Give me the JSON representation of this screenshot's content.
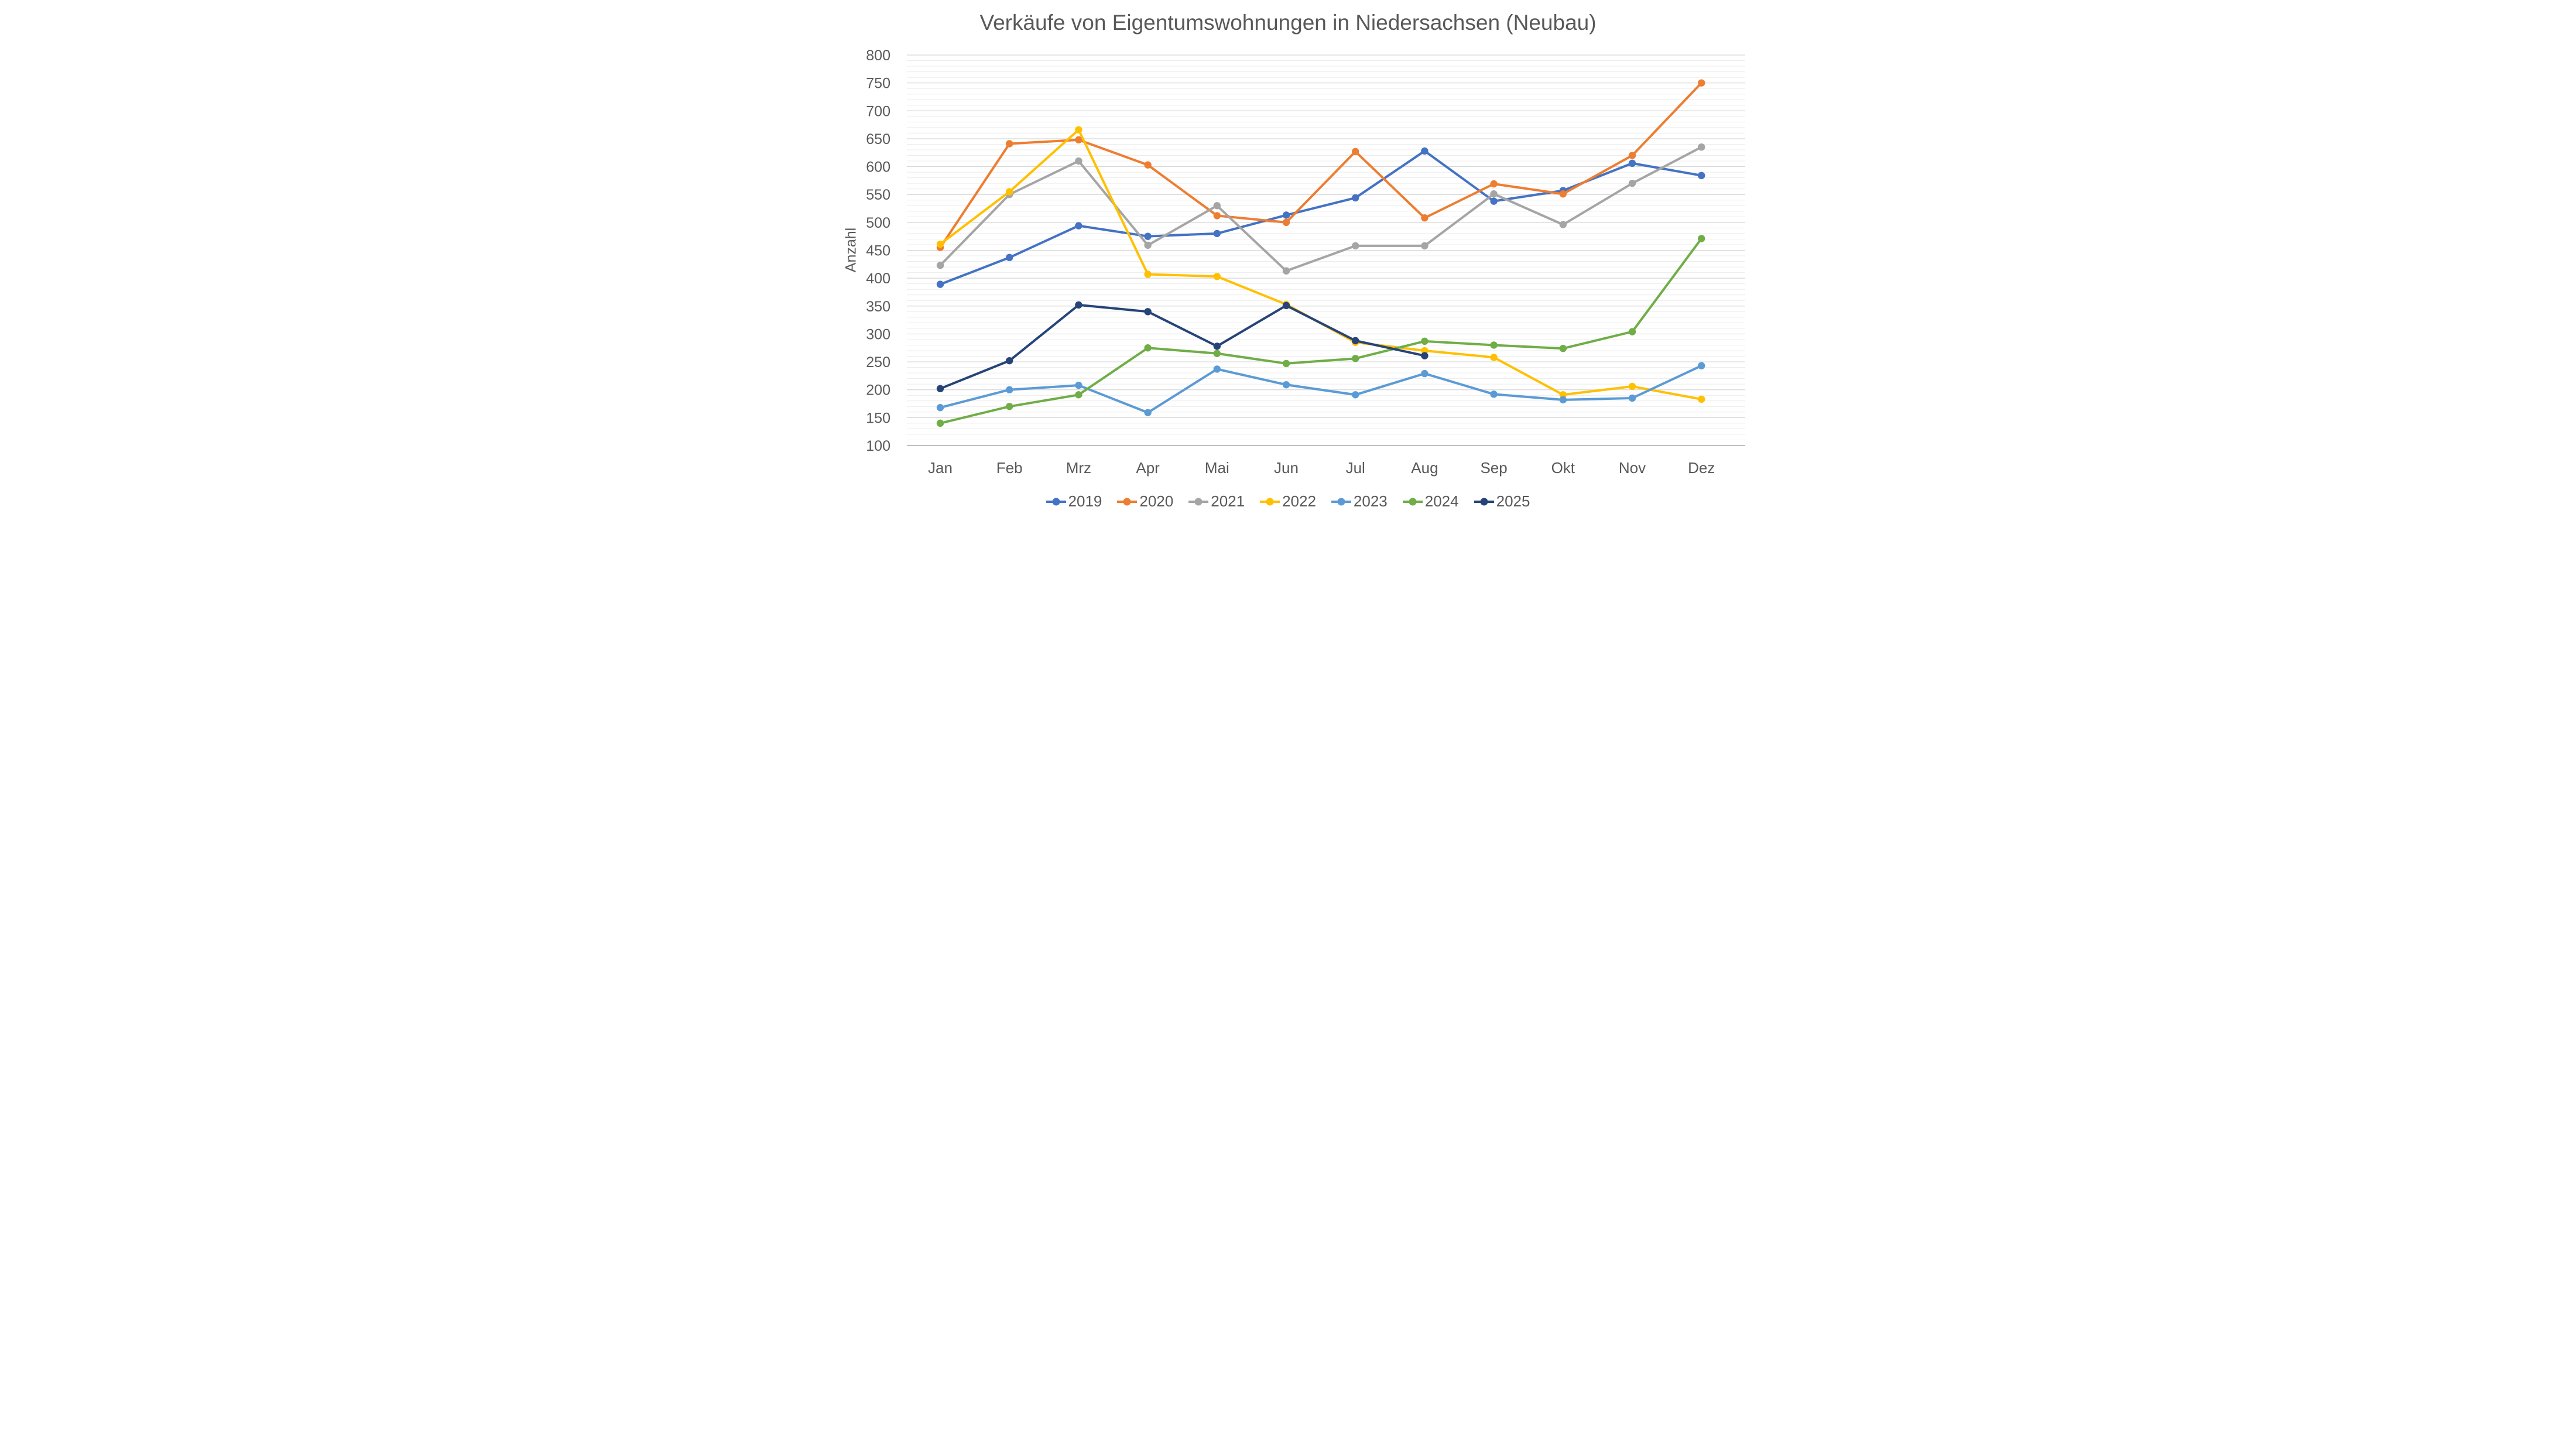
{
  "chart_data": {
    "type": "line",
    "title": "Verkäufe von Eigentumswohnungen in Niedersachsen (Neubau)",
    "xlabel": "",
    "ylabel": "Anzahl",
    "ylim": [
      100,
      800
    ],
    "ytick_step": 50,
    "minor_grid_step": 10,
    "grid": "horizontal, minor every 10 and major every 50",
    "legend_position": "bottom",
    "marker": "circle",
    "categories": [
      "Jan",
      "Feb",
      "Mrz",
      "Apr",
      "Mai",
      "Jun",
      "Jul",
      "Aug",
      "Sep",
      "Okt",
      "Nov",
      "Dez"
    ],
    "series": [
      {
        "name": "2019",
        "color": "#4472C4",
        "values": [
          389,
          437,
          494,
          475,
          480,
          513,
          544,
          628,
          538,
          557,
          606,
          584
        ]
      },
      {
        "name": "2020",
        "color": "#ED7D31",
        "values": [
          455,
          641,
          648,
          603,
          512,
          500,
          627,
          508,
          569,
          551,
          620,
          750
        ]
      },
      {
        "name": "2021",
        "color": "#A5A5A5",
        "values": [
          423,
          550,
          610,
          459,
          530,
          413,
          458,
          458,
          551,
          496,
          570,
          635
        ]
      },
      {
        "name": "2022",
        "color": "#FFC000",
        "values": [
          461,
          555,
          666,
          407,
          403,
          353,
          285,
          270,
          258,
          191,
          206,
          183
        ]
      },
      {
        "name": "2023",
        "color": "#5B9BD5",
        "values": [
          168,
          200,
          208,
          159,
          237,
          209,
          191,
          229,
          192,
          182,
          185,
          243
        ]
      },
      {
        "name": "2024",
        "color": "#70AD47",
        "values": [
          140,
          170,
          191,
          275,
          265,
          247,
          256,
          287,
          280,
          274,
          304,
          471
        ]
      },
      {
        "name": "2025",
        "color": "#264478",
        "values": [
          202,
          252,
          352,
          340,
          278,
          351,
          288,
          261
        ]
      }
    ],
    "colors": {
      "text": "#595959",
      "major_gridline": "#d6d6d6",
      "minor_gridline": "#ececec",
      "axis_line": "#c0c0c0",
      "background": "#ffffff"
    }
  }
}
